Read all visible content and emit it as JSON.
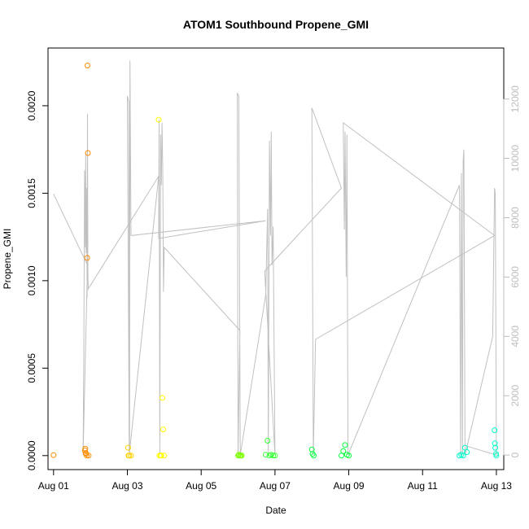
{
  "chart_data": {
    "type": "scatter",
    "title": "ATOM1 Southbound Propene_GMI",
    "xlabel": "Date",
    "ylabel": "Propene_GMI",
    "x_tick_labels": [
      "Aug 01",
      "Aug 03",
      "Aug 05",
      "Aug 07",
      "Aug 09",
      "Aug 11",
      "Aug 13"
    ],
    "x_tick_days": [
      1,
      3,
      5,
      7,
      9,
      11,
      13
    ],
    "xlim_days": [
      0.85,
      13.2
    ],
    "y_tick_labels": [
      "0.0000",
      "0.0005",
      "0.0010",
      "0.0015",
      "0.0020"
    ],
    "y_tick_values": [
      0,
      0.0005,
      0.001,
      0.0015,
      0.002
    ],
    "ylim": [
      -8e-05,
      0.00233
    ],
    "y2_tick_labels": [
      "0",
      "2000",
      "4000",
      "6000",
      "8000",
      "10000",
      "12000"
    ],
    "y2_tick_values": [
      0,
      2000,
      4000,
      6000,
      8000,
      10000,
      12000
    ],
    "y2lim": [
      -490,
      13720
    ],
    "y2_color": "#bdbdbd",
    "grid": false,
    "point_series": [
      {
        "color": "#ff8c00",
        "points": [
          [
            1.0,
            3e-06
          ],
          [
            1.85,
            3e-05
          ],
          [
            1.86,
            4e-05
          ],
          [
            1.87,
            1.5e-05
          ],
          [
            1.88,
            1e-05
          ],
          [
            1.9,
            0.0
          ],
          [
            1.92,
            0.00223
          ],
          [
            1.93,
            0.00173
          ],
          [
            1.91,
            0.00113
          ],
          [
            1.95,
            0.0
          ]
        ]
      },
      {
        "color": "#ffd200",
        "points": [
          [
            3.02,
            4.5e-05
          ],
          [
            3.03,
            0.0
          ],
          [
            3.05,
            0.0
          ],
          [
            3.1,
            0.0
          ]
        ]
      },
      {
        "color": "#ffff00",
        "points": [
          [
            3.85,
            0.00192
          ],
          [
            3.87,
            0.0
          ],
          [
            3.9,
            0.0
          ],
          [
            3.92,
            0.0
          ],
          [
            3.95,
            0.00033
          ],
          [
            3.97,
            0.00015
          ],
          [
            4.0,
            0.0
          ]
        ]
      },
      {
        "color": "#7cff00",
        "points": [
          [
            6.0,
            0.0
          ],
          [
            6.02,
            5e-06
          ],
          [
            6.05,
            0.0
          ],
          [
            6.07,
            0.0
          ],
          [
            6.1,
            0.0
          ]
        ]
      },
      {
        "color": "#32ff32",
        "points": [
          [
            6.8,
            8.5e-05
          ],
          [
            6.75,
            5e-06
          ],
          [
            6.85,
            0.0
          ],
          [
            6.9,
            5e-06
          ],
          [
            6.95,
            0.0
          ],
          [
            7.0,
            0.0
          ]
        ]
      },
      {
        "color": "#00ff3c",
        "points": [
          [
            8.0,
            3.5e-05
          ],
          [
            8.02,
            1e-05
          ],
          [
            8.05,
            0.0
          ],
          [
            8.8,
            0.0
          ],
          [
            8.85,
            2.5e-05
          ],
          [
            8.9,
            6e-05
          ],
          [
            8.95,
            5e-06
          ],
          [
            9.0,
            0.0
          ]
        ]
      },
      {
        "color": "#00ffc8",
        "points": [
          [
            12.0,
            0.0
          ],
          [
            12.05,
            5e-06
          ],
          [
            12.1,
            0.0
          ],
          [
            12.15,
            4.5e-05
          ],
          [
            12.2,
            2e-05
          ],
          [
            12.95,
            0.000145
          ],
          [
            12.96,
            7e-05
          ],
          [
            12.97,
            4.5e-05
          ],
          [
            12.99,
            1e-05
          ],
          [
            13.0,
            0.0
          ]
        ]
      }
    ],
    "gray_line": {
      "color": "#c0c0c0",
      "axis": "y2",
      "points": [
        [
          1.0,
          8800
        ],
        [
          1.92,
          6400
        ],
        [
          1.8,
          0
        ],
        [
          1.82,
          3400
        ],
        [
          1.84,
          9600
        ],
        [
          1.86,
          7000
        ],
        [
          1.87,
          10200
        ],
        [
          1.88,
          6800
        ],
        [
          1.9,
          9000
        ],
        [
          1.91,
          5300
        ],
        [
          1.92,
          11500
        ],
        [
          1.93,
          6200
        ],
        [
          1.94,
          5600
        ],
        [
          3.85,
          9400
        ],
        [
          3.05,
          0
        ],
        [
          3.0,
          12100
        ],
        [
          3.04,
          11900
        ],
        [
          3.06,
          0
        ],
        [
          3.07,
          13300
        ],
        [
          3.1,
          7400
        ],
        [
          6.75,
          7900
        ],
        [
          3.85,
          7300
        ],
        [
          3.86,
          11300
        ],
        [
          3.88,
          0
        ],
        [
          3.9,
          10800
        ],
        [
          3.92,
          9100
        ],
        [
          3.94,
          11200
        ],
        [
          3.96,
          9600
        ],
        [
          3.98,
          5500
        ],
        [
          4.0,
          7000
        ],
        [
          6.05,
          4200
        ],
        [
          6.0,
          0
        ],
        [
          5.98,
          12200
        ],
        [
          6.02,
          12100
        ],
        [
          6.04,
          6200
        ],
        [
          6.06,
          0
        ],
        [
          6.75,
          5400
        ],
        [
          6.8,
          8300
        ],
        [
          6.82,
          0
        ],
        [
          6.85,
          10600
        ],
        [
          6.88,
          7400
        ],
        [
          6.9,
          10900
        ],
        [
          6.92,
          6400
        ],
        [
          6.95,
          7700
        ],
        [
          7.0,
          0
        ],
        [
          6.72,
          6200
        ],
        [
          8.8,
          9000
        ],
        [
          8.0,
          11700
        ],
        [
          8.04,
          0
        ],
        [
          8.1,
          3900
        ],
        [
          12.95,
          7400
        ],
        [
          8.85,
          11200
        ],
        [
          8.88,
          7600
        ],
        [
          8.9,
          10900
        ],
        [
          8.93,
          6000
        ],
        [
          8.95,
          10800
        ],
        [
          8.98,
          0
        ],
        [
          12.0,
          9100
        ],
        [
          12.03,
          0
        ],
        [
          12.05,
          9500
        ],
        [
          12.08,
          0
        ],
        [
          12.1,
          9900
        ],
        [
          12.12,
          10300
        ],
        [
          12.15,
          0
        ],
        [
          12.9,
          4000
        ],
        [
          12.95,
          9000
        ],
        [
          12.97,
          8800
        ],
        [
          13.0,
          0
        ],
        [
          12.2,
          300
        ]
      ]
    }
  }
}
